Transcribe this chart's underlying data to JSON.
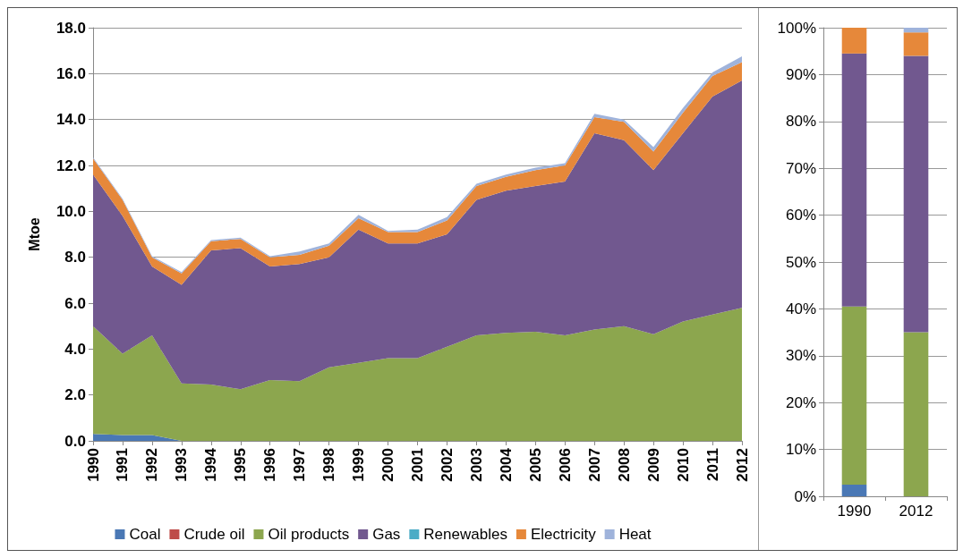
{
  "chart_data": [
    {
      "type": "area",
      "stacked": true,
      "ylabel": "Mtoe",
      "categories": [
        "1990",
        "1991",
        "1992",
        "1993",
        "1994",
        "1995",
        "1996",
        "1997",
        "1998",
        "1999",
        "2000",
        "2001",
        "2002",
        "2003",
        "2004",
        "2005",
        "2006",
        "2007",
        "2008",
        "2009",
        "2010",
        "2011",
        "2012"
      ],
      "ylim": [
        0,
        18
      ],
      "yticks": [
        {
          "value": 0,
          "label": "0.0"
        },
        {
          "value": 2,
          "label": "2.0"
        },
        {
          "value": 4,
          "label": "4.0"
        },
        {
          "value": 6,
          "label": "6.0"
        },
        {
          "value": 8,
          "label": "8.0"
        },
        {
          "value": 10,
          "label": "10.0"
        },
        {
          "value": 12,
          "label": "12.0"
        },
        {
          "value": 14,
          "label": "14.0"
        },
        {
          "value": 16,
          "label": "16.0"
        },
        {
          "value": 18,
          "label": "18.0"
        }
      ],
      "grid": "y",
      "legend": "bottom",
      "series": [
        {
          "name": "Coal",
          "color": "#4a78b5",
          "values": [
            0.3,
            0.25,
            0.25,
            0,
            0,
            0,
            0,
            0,
            0,
            0,
            0,
            0,
            0,
            0,
            0,
            0,
            0,
            0,
            0,
            0,
            0,
            0,
            0
          ]
        },
        {
          "name": "Crude oil",
          "color": "#be4b48",
          "values": [
            null,
            null,
            null,
            null,
            null,
            null,
            null,
            null,
            null,
            null,
            null,
            null,
            null,
            null,
            null,
            null,
            null,
            null,
            null,
            null,
            null,
            null,
            null
          ]
        },
        {
          "name": "Oil products",
          "color": "#8ca64e",
          "values": [
            4.7,
            3.55,
            4.35,
            2.5,
            2.45,
            2.25,
            2.65,
            2.6,
            3.2,
            3.4,
            3.6,
            3.6,
            4.1,
            4.6,
            4.7,
            4.75,
            4.6,
            4.85,
            5.0,
            4.65,
            5.2,
            5.5,
            5.8
          ]
        },
        {
          "name": "Gas",
          "color": "#71588f",
          "values": [
            6.6,
            6.0,
            3.0,
            4.3,
            5.85,
            6.15,
            4.95,
            5.1,
            4.8,
            5.8,
            5.0,
            5.0,
            4.9,
            5.9,
            6.2,
            6.35,
            6.7,
            8.55,
            8.1,
            7.15,
            8.2,
            9.5,
            9.9
          ]
        },
        {
          "name": "Renewables",
          "color": "#4bacc6",
          "values": [
            null,
            null,
            null,
            null,
            null,
            null,
            null,
            null,
            null,
            null,
            null,
            null,
            null,
            null,
            null,
            null,
            null,
            null,
            null,
            null,
            null,
            null,
            null
          ]
        },
        {
          "name": "Electricity",
          "color": "#e6883a",
          "values": [
            0.7,
            0.7,
            0.4,
            0.5,
            0.4,
            0.4,
            0.4,
            0.4,
            0.5,
            0.5,
            0.5,
            0.5,
            0.6,
            0.6,
            0.6,
            0.7,
            0.7,
            0.7,
            0.8,
            0.8,
            0.9,
            0.9,
            0.8
          ]
        },
        {
          "name": "Heat",
          "color": "#9fb3db",
          "values": [
            0.05,
            0.05,
            0.05,
            0.05,
            0.05,
            0.05,
            0.05,
            0.15,
            0.1,
            0.15,
            0.05,
            0.1,
            0.15,
            0.1,
            0.1,
            0.1,
            0.1,
            0.15,
            0.1,
            0.2,
            0.2,
            0.15,
            0.25
          ]
        }
      ]
    },
    {
      "type": "bar",
      "stacked": true,
      "categories": [
        "1990",
        "2012"
      ],
      "ylim": [
        0,
        100
      ],
      "yticks": [
        {
          "value": 0,
          "label": "0%"
        },
        {
          "value": 10,
          "label": "10%"
        },
        {
          "value": 20,
          "label": "20%"
        },
        {
          "value": 30,
          "label": "30%"
        },
        {
          "value": 40,
          "label": "40%"
        },
        {
          "value": 50,
          "label": "50%"
        },
        {
          "value": 60,
          "label": "60%"
        },
        {
          "value": 70,
          "label": "70%"
        },
        {
          "value": 80,
          "label": "80%"
        },
        {
          "value": 90,
          "label": "90%"
        },
        {
          "value": 100,
          "label": "100%"
        }
      ],
      "grid": "y",
      "series": [
        {
          "color": "#4a78b5",
          "values": [
            2.5,
            0
          ]
        },
        {
          "color": "#be4b48",
          "values": [
            0,
            0
          ]
        },
        {
          "color": "#8ca64e",
          "values": [
            38,
            35
          ]
        },
        {
          "color": "#71588f",
          "values": [
            54,
            59
          ]
        },
        {
          "color": "#4bacc6",
          "values": [
            0,
            0
          ]
        },
        {
          "color": "#e6883a",
          "values": [
            5.5,
            5
          ]
        },
        {
          "color": "#9fb3db",
          "values": [
            0,
            1
          ]
        }
      ]
    }
  ]
}
